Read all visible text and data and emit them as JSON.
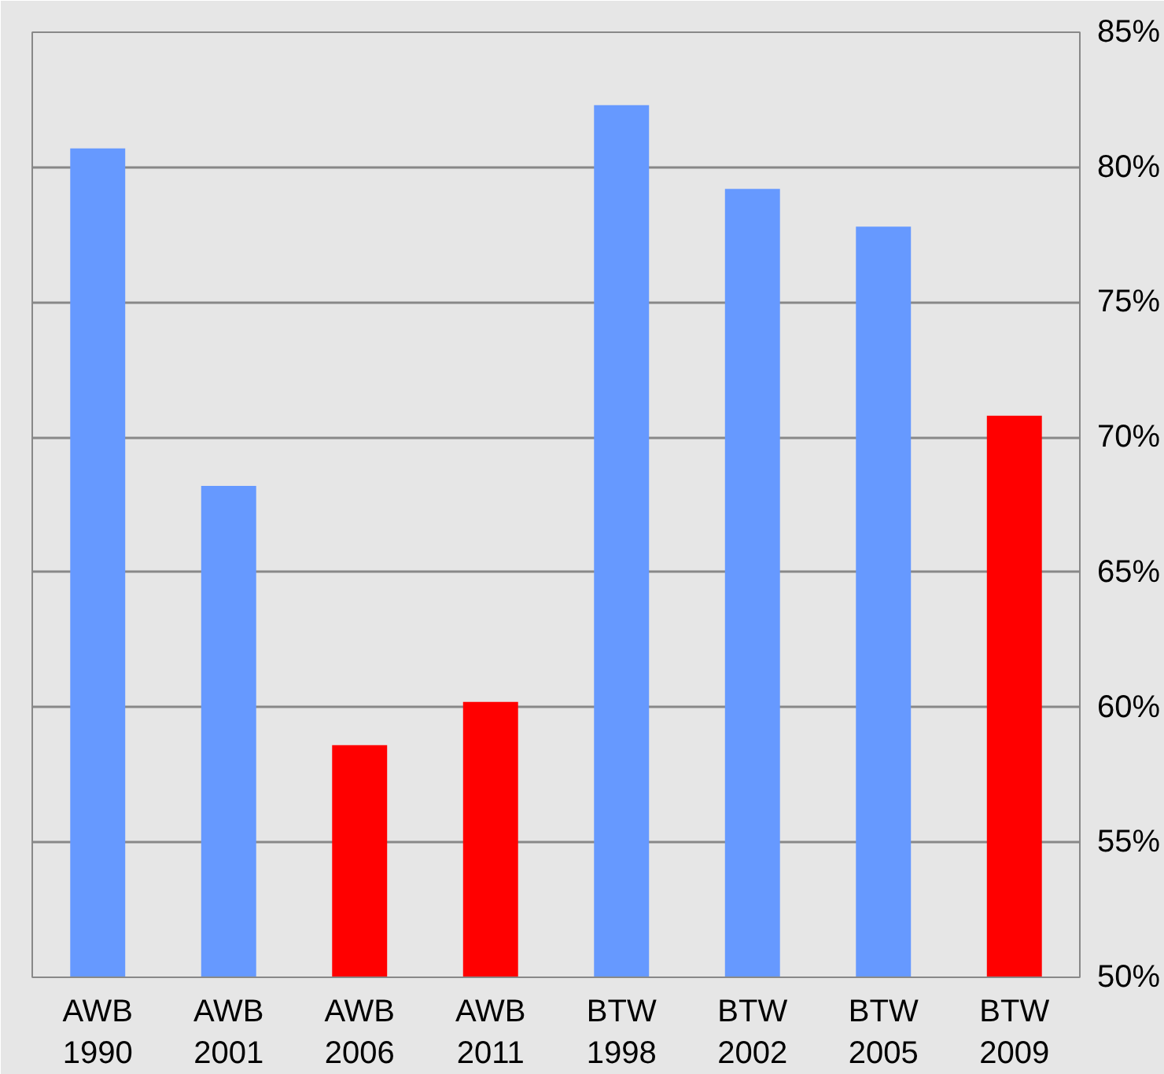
{
  "chart_data": {
    "type": "bar",
    "categories": [
      "AWB 1990",
      "AWB 2001",
      "AWB 2006",
      "AWB 2011",
      "BTW 1998",
      "BTW 2002",
      "BTW 2005",
      "BTW 2009"
    ],
    "values": [
      80.7,
      68.2,
      58.6,
      60.2,
      82.3,
      79.2,
      77.8,
      70.8
    ],
    "colors": [
      "#6699ff",
      "#6699ff",
      "#ff0000",
      "#ff0000",
      "#6699ff",
      "#6699ff",
      "#6699ff",
      "#ff0000"
    ],
    "ylim": [
      50,
      85
    ],
    "yticks": [
      {
        "value": 50,
        "label": "50%"
      },
      {
        "value": 55,
        "label": "55%"
      },
      {
        "value": 60,
        "label": "60%"
      },
      {
        "value": 65,
        "label": "65%"
      },
      {
        "value": 70,
        "label": "70%"
      },
      {
        "value": 75,
        "label": "75%"
      },
      {
        "value": 80,
        "label": "80%"
      },
      {
        "value": 85,
        "label": "85%"
      }
    ],
    "grid": "y"
  }
}
